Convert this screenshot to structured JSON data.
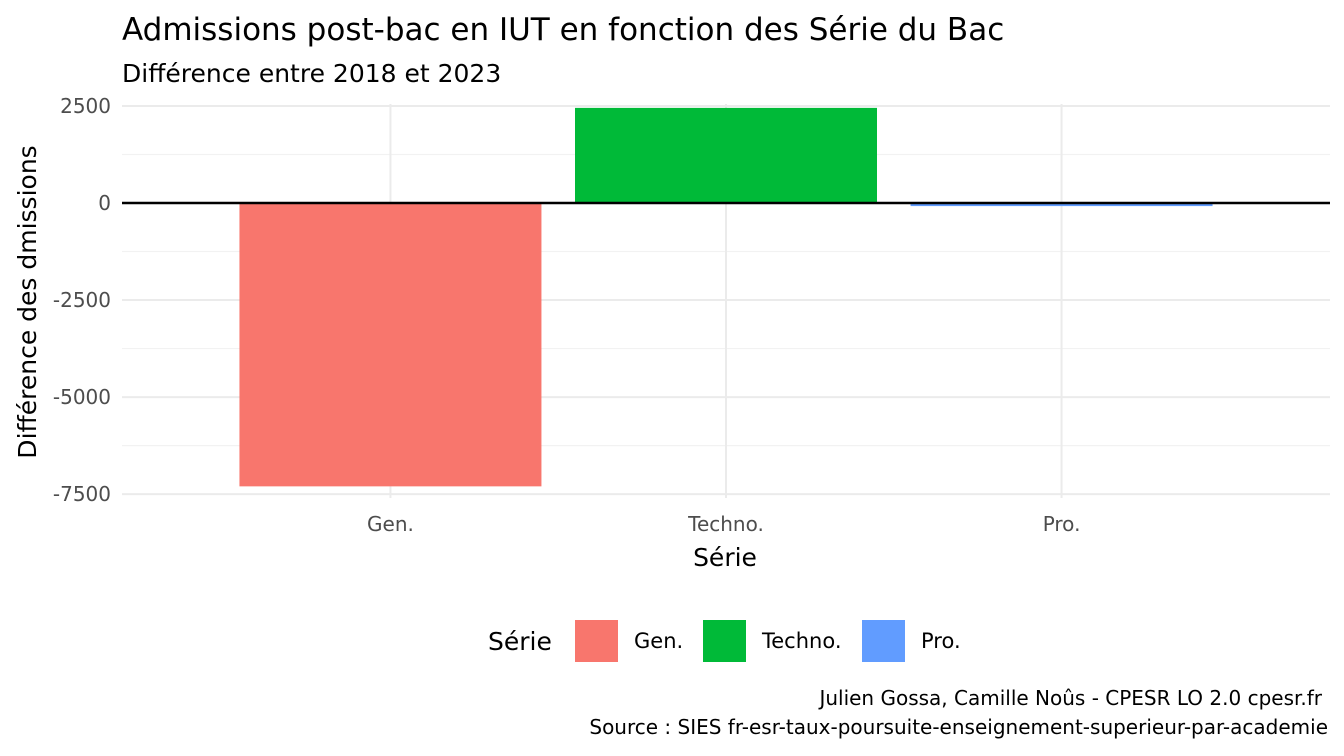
{
  "chart_data": {
    "type": "bar",
    "title": "Admissions post-bac en IUT en fonction des Série du Bac",
    "subtitle": "Différence entre 2018 et 2023",
    "xlabel": "Série",
    "ylabel": "Différence des dmissions",
    "categories": [
      "Gen.",
      "Techno.",
      "Pro."
    ],
    "values": [
      -7300,
      2450,
      -80
    ],
    "colors": [
      "#F8766D",
      "#00BA38",
      "#619CFF"
    ],
    "ylim": [
      -7600,
      2550
    ],
    "yticks": [
      2500,
      0,
      -2500,
      -5000,
      -7500
    ],
    "ytick_labels": [
      "2500",
      "0",
      "-2500",
      "-5000",
      "-7500"
    ],
    "grid": true,
    "zero_line": true,
    "legend": {
      "title": "Série",
      "position": "bottom",
      "entries": [
        "Gen.",
        "Techno.",
        "Pro."
      ]
    },
    "caption": [
      "Julien Gossa, Camille Noûs - CPESR LO 2.0 cpesr.fr",
      "Source : SIES fr-esr-taux-poursuite-enseignement-superieur-par-academie"
    ]
  }
}
